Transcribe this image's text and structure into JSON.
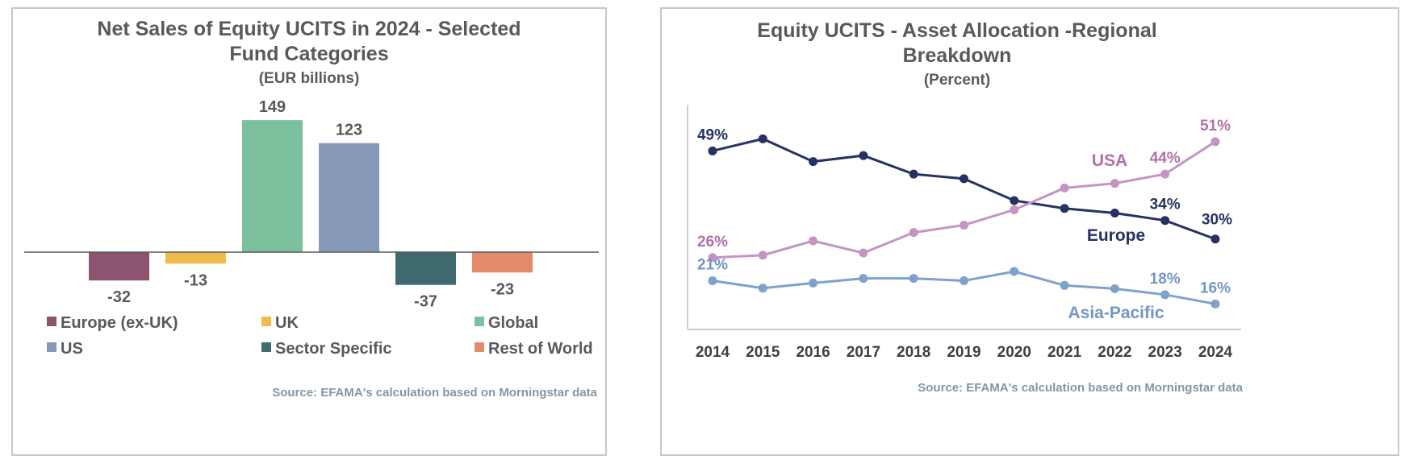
{
  "chart_data": [
    {
      "type": "bar",
      "title_lines": [
        "Net Sales of Equity UCITS in 2024 - Selected",
        "Fund Categories"
      ],
      "subtitle": "(EUR billions)",
      "categories": [
        "Europe (ex-UK)",
        "UK",
        "Global",
        "US",
        "Sector Specific",
        "Rest of World"
      ],
      "values": [
        -32,
        -13,
        149,
        123,
        -37,
        -23
      ],
      "value_labels": [
        "-32",
        "-13",
        "149",
        "123",
        "-37",
        "-23"
      ],
      "colors": [
        "#8b5571",
        "#f0bb4d",
        "#7cc19e",
        "#8699b6",
        "#3f6a70",
        "#e58b6b"
      ],
      "ylim": [
        -45,
        160
      ],
      "legend": "bottom",
      "source": "Source: EFAMA's calculation based on Morningstar data"
    },
    {
      "type": "line",
      "title_lines": [
        "Equity UCITS - Asset Allocation -Regional",
        "Breakdown"
      ],
      "subtitle": "(Percent)",
      "x": [
        "2014",
        "2015",
        "2016",
        "2017",
        "2018",
        "2019",
        "2020",
        "2021",
        "2022",
        "2023",
        "2024"
      ],
      "ylim": [
        10.5,
        60
      ],
      "series": [
        {
          "name": "Europe",
          "color": "#253262",
          "values": [
            49,
            51.6,
            46.7,
            48,
            44,
            43,
            38.3,
            36.6,
            35.6,
            34,
            30
          ],
          "labels": [
            {
              "i": 0,
              "text": "49%"
            },
            {
              "i": 9,
              "text": "34%"
            },
            {
              "i": 10,
              "text": "30%"
            }
          ]
        },
        {
          "name": "USA",
          "color": "#c495c2",
          "label_color": "#b56fa8",
          "values": [
            26,
            26.5,
            29.6,
            27,
            31.4,
            33,
            36.3,
            41,
            42,
            44,
            51
          ],
          "labels": [
            {
              "i": 0,
              "text": "26%"
            },
            {
              "i": 9,
              "text": "44%"
            },
            {
              "i": 10,
              "text": "51%"
            }
          ]
        },
        {
          "name": "Asia-Pacific",
          "color": "#7fa2cb",
          "label_color": "#7396c4",
          "values": [
            21,
            19.4,
            20.5,
            21.5,
            21.5,
            21,
            23,
            20,
            19.3,
            18,
            16
          ],
          "labels": [
            {
              "i": 0,
              "text": "21%"
            },
            {
              "i": 9,
              "text": "18%"
            },
            {
              "i": 10,
              "text": "16%"
            }
          ]
        }
      ],
      "source": "Source: EFAMA's calculation based on Morningstar data"
    }
  ]
}
